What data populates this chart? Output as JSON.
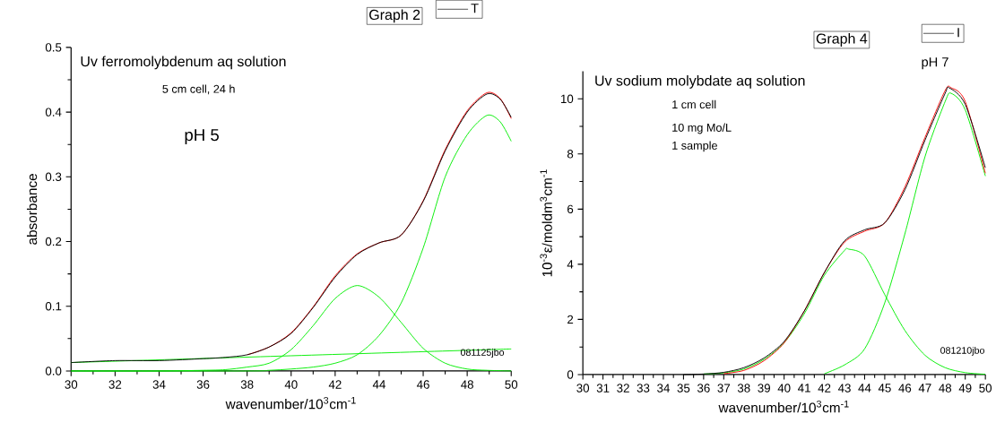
{
  "chart_data": [
    {
      "type": "line",
      "title": "Graph 2",
      "xlabel": "wavenumber/10$^{3}$cm$^{-1}$",
      "ylabel": "absorbance",
      "annotations": [
        "Uv ferromolybdenum aq solution",
        "5 cm cell, 24 h",
        "pH 5",
        "081125jbo"
      ],
      "xlim": [
        30,
        50
      ],
      "xticks": [
        30,
        32,
        34,
        36,
        38,
        40,
        42,
        44,
        46,
        48,
        50
      ],
      "ylim": [
        0,
        0.5
      ],
      "yticks": [
        {
          "value": 0,
          "label": "0.0"
        },
        0.1,
        0.2,
        0.3,
        0.4,
        0.5
      ],
      "legend": "top right",
      "series": [
        {
          "color": "#00ee00",
          "x": [
            30,
            50
          ],
          "values": [
            0.013,
            0.034
          ]
        },
        {
          "color": "#00ee00",
          "x": [
            30,
            34,
            36,
            37,
            38,
            39,
            40,
            41,
            42,
            43,
            44,
            45,
            46,
            47,
            48,
            48.9,
            50
          ],
          "values": [
            0,
            0,
            0.001,
            0.002,
            0.006,
            0.012,
            0.033,
            0.07,
            0.112,
            0.132,
            0.114,
            0.075,
            0.035,
            0.012,
            0.003,
            0.001,
            0
          ]
        },
        {
          "color": "#00ee00",
          "x": [
            30,
            38,
            39,
            40,
            41,
            42,
            43,
            44,
            45,
            46,
            47,
            48,
            48.9,
            49.5,
            50
          ],
          "values": [
            0,
            0,
            0.001,
            0.003,
            0.006,
            0.012,
            0.025,
            0.055,
            0.105,
            0.19,
            0.3,
            0.365,
            0.395,
            0.385,
            0.355
          ]
        },
        {
          "color": "#ff0000",
          "x": [
            38,
            39,
            40,
            41,
            42,
            43,
            44,
            45,
            46,
            47,
            48,
            48.9,
            49.5,
            50
          ],
          "values": [
            0.025,
            0.037,
            0.059,
            0.099,
            0.147,
            0.181,
            0.198,
            0.21,
            0.263,
            0.342,
            0.402,
            0.43,
            0.421,
            0.39
          ]
        },
        {
          "name": "T",
          "color": "#000000",
          "x": [
            30,
            32,
            34,
            36,
            37,
            38,
            39,
            40,
            41,
            42,
            43,
            44,
            45,
            46,
            47,
            48,
            48.9,
            49.5,
            50
          ],
          "values": [
            0.013,
            0.016,
            0.016,
            0.019,
            0.021,
            0.025,
            0.037,
            0.058,
            0.098,
            0.145,
            0.18,
            0.198,
            0.21,
            0.262,
            0.34,
            0.4,
            0.428,
            0.42,
            0.392
          ]
        }
      ]
    },
    {
      "type": "line",
      "title": "Graph 4",
      "xlabel": "wavenumber/10$^{3}$cm$^{-1}$",
      "ylabel": "10$^{-3}$ε/moldm$^{3}$cm$^{-1}$",
      "annotations": [
        "Uv sodium molybdate aq solution",
        "1 cm cell",
        "10 mg Mo/L",
        "1 sample",
        "pH 7",
        "081210jbo"
      ],
      "xlim": [
        30,
        50
      ],
      "xticks": [
        30,
        31,
        32,
        33,
        34,
        35,
        36,
        37,
        38,
        39,
        40,
        41,
        42,
        43,
        44,
        45,
        46,
        47,
        48,
        49,
        50
      ],
      "ylim": [
        0,
        11
      ],
      "yticks": [
        0,
        2,
        4,
        6,
        8,
        10
      ],
      "legend": "top right",
      "series": [
        {
          "color": "#00ee00",
          "x": [
            36,
            37,
            38,
            39,
            40,
            41,
            42,
            43,
            43.2,
            44,
            45,
            46,
            47,
            48,
            49,
            50
          ],
          "values": [
            0.02,
            0.06,
            0.2,
            0.55,
            1.15,
            2.2,
            3.6,
            4.5,
            4.55,
            4.3,
            2.9,
            1.6,
            0.7,
            0.25,
            0.07,
            0.01
          ]
        },
        {
          "color": "#00ee00",
          "x": [
            42,
            43,
            44,
            45,
            46,
            47,
            48,
            48.3,
            49,
            50
          ],
          "values": [
            0.03,
            0.35,
            0.93,
            2.6,
            5.1,
            7.9,
            9.9,
            10.2,
            9.6,
            7.2
          ]
        },
        {
          "color": "#ff0000",
          "x": [
            37,
            38,
            39,
            40,
            41,
            42,
            43,
            44,
            45,
            46,
            47,
            48,
            48.3,
            49,
            50
          ],
          "values": [
            0.03,
            0.15,
            0.5,
            1.15,
            2.3,
            3.7,
            4.8,
            5.2,
            5.5,
            6.8,
            8.6,
            10.3,
            10.4,
            9.9,
            7.3
          ]
        },
        {
          "name": "I",
          "color": "#000000",
          "x": [
            35,
            36,
            37,
            38,
            39,
            40,
            41,
            42,
            43,
            44,
            45,
            46,
            47,
            48,
            48.2,
            49,
            50
          ],
          "values": [
            0,
            0.02,
            0.08,
            0.25,
            0.6,
            1.2,
            2.3,
            3.7,
            4.85,
            5.25,
            5.5,
            6.7,
            8.5,
            10.2,
            10.4,
            9.8,
            7.5
          ]
        }
      ]
    }
  ]
}
